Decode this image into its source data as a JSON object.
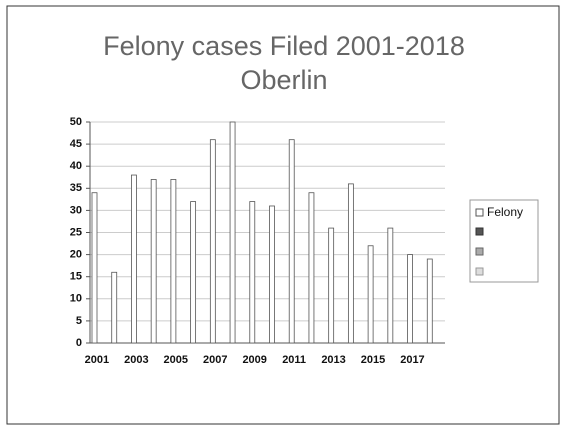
{
  "chart_data": {
    "type": "bar",
    "title": [
      "Felony cases Filed 2001-2018",
      "Oberlin"
    ],
    "categories": [
      "2001",
      null,
      "2003",
      null,
      "2005",
      null,
      "2007",
      null,
      "2009",
      null,
      "2011",
      null,
      "2013",
      null,
      "2015",
      null,
      "2017",
      null
    ],
    "series": [
      {
        "name": "Felony",
        "color": "#ffffff",
        "values": [
          34,
          16,
          38,
          37,
          37,
          32,
          46,
          50,
          32,
          31,
          46,
          34,
          26,
          36,
          22,
          26,
          20,
          19
        ]
      }
    ],
    "ylim": [
      0,
      50
    ],
    "yticks": [
      0,
      5,
      10,
      15,
      20,
      25,
      30,
      35,
      40,
      45,
      50
    ],
    "grid": true,
    "legend": "right"
  }
}
